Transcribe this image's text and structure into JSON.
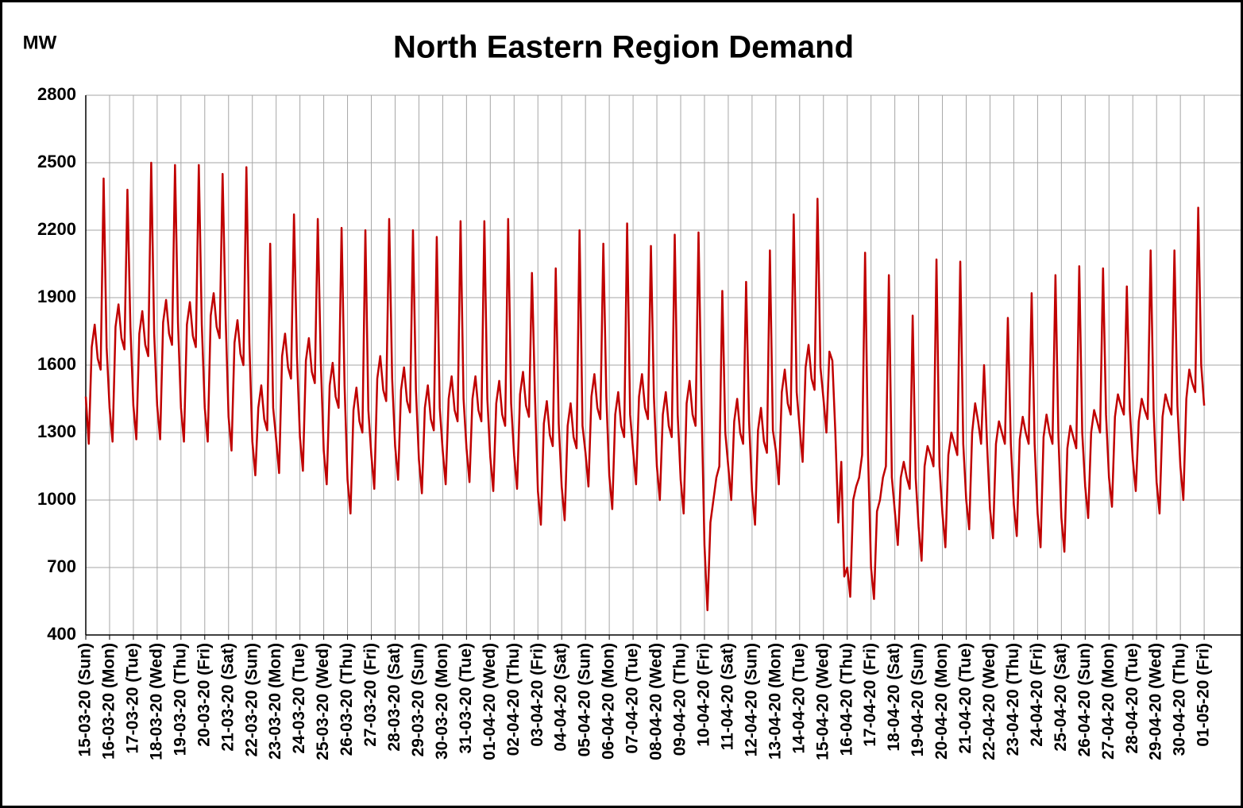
{
  "chart_data": {
    "type": "line",
    "title": "North Eastern Region Demand",
    "y_label": "MW",
    "color": "#c00000",
    "categories": [
      "15-03-20 (Sun)",
      "16-03-20 (Mon)",
      "17-03-20 (Tue)",
      "18-03-20 (Wed)",
      "19-03-20 (Thu)",
      "20-03-20 (Fri)",
      "21-03-20 (Sat)",
      "22-03-20 (Sun)",
      "23-03-20 (Mon)",
      "24-03-20 (Tue)",
      "25-03-20 (Wed)",
      "26-03-20 (Thu)",
      "27-03-20 (Fri)",
      "28-03-20 (Sat)",
      "29-03-20 (Sun)",
      "30-03-20 (Mon)",
      "31-03-20 (Tue)",
      "01-04-20 (Wed)",
      "02-04-20 (Thu)",
      "03-04-20 (Fri)",
      "04-04-20 (Sat)",
      "05-04-20 (Sun)",
      "06-04-20 (Mon)",
      "07-04-20 (Tue)",
      "08-04-20 (Wed)",
      "09-04-20 (Thu)",
      "10-04-20 (Fri)",
      "11-04-20 (Sat)",
      "12-04-20 (Sun)",
      "13-04-20 (Mon)",
      "14-04-20 (Tue)",
      "15-04-20 (Wed)",
      "16-04-20 (Thu)",
      "17-04-20 (Fri)",
      "18-04-20 (Sat)",
      "19-04-20 (Sun)",
      "20-04-20 (Mon)",
      "21-04-20 (Tue)",
      "22-04-20 (Wed)",
      "23-04-20 (Thu)",
      "24-04-20 (Fri)",
      "25-04-20 (Sat)",
      "26-04-20 (Sun)",
      "27-04-20 (Mon)",
      "28-04-20 (Tue)",
      "29-04-20 (Wed)",
      "30-04-20 (Thu)",
      "01-05-20 (Fri)"
    ],
    "values": [
      [
        1460,
        1250,
        1680,
        1780,
        1630,
        1580,
        2430,
        1680
      ],
      [
        1410,
        1260,
        1770,
        1870,
        1720,
        1670,
        2380,
        1770
      ],
      [
        1420,
        1270,
        1740,
        1840,
        1690,
        1640,
        2500,
        1740
      ],
      [
        1420,
        1270,
        1790,
        1890,
        1740,
        1690,
        2490,
        1790
      ],
      [
        1410,
        1260,
        1780,
        1880,
        1730,
        1680,
        2490,
        1780
      ],
      [
        1410,
        1260,
        1820,
        1920,
        1770,
        1720,
        2450,
        1820
      ],
      [
        1370,
        1220,
        1700,
        1800,
        1650,
        1600,
        2480,
        1700
      ],
      [
        1260,
        1110,
        1410,
        1510,
        1360,
        1310,
        2140,
        1410
      ],
      [
        1270,
        1120,
        1640,
        1740,
        1590,
        1540,
        2270,
        1640
      ],
      [
        1280,
        1130,
        1620,
        1720,
        1570,
        1520,
        2250,
        1620
      ],
      [
        1220,
        1070,
        1510,
        1610,
        1460,
        1410,
        2210,
        1510
      ],
      [
        1090,
        940,
        1400,
        1500,
        1350,
        1300,
        2200,
        1400
      ],
      [
        1200,
        1050,
        1540,
        1640,
        1490,
        1440,
        2250,
        1540
      ],
      [
        1240,
        1090,
        1490,
        1590,
        1440,
        1390,
        2200,
        1490
      ],
      [
        1180,
        1030,
        1410,
        1510,
        1360,
        1310,
        2170,
        1410
      ],
      [
        1220,
        1070,
        1450,
        1550,
        1400,
        1350,
        2240,
        1450
      ],
      [
        1230,
        1080,
        1450,
        1550,
        1400,
        1350,
        2240,
        1450
      ],
      [
        1190,
        1040,
        1430,
        1530,
        1380,
        1330,
        2250,
        1430
      ],
      [
        1200,
        1050,
        1470,
        1570,
        1420,
        1370,
        2010,
        1470
      ],
      [
        1040,
        890,
        1340,
        1440,
        1290,
        1240,
        2030,
        1340
      ],
      [
        1060,
        910,
        1330,
        1430,
        1280,
        1230,
        2200,
        1330
      ],
      [
        1210,
        1060,
        1460,
        1560,
        1410,
        1360,
        2140,
        1460
      ],
      [
        1110,
        960,
        1380,
        1480,
        1330,
        1280,
        2230,
        1380
      ],
      [
        1220,
        1070,
        1460,
        1560,
        1410,
        1360,
        2130,
        1460
      ],
      [
        1150,
        1000,
        1380,
        1480,
        1330,
        1280,
        2180,
        1380
      ],
      [
        1090,
        940,
        1430,
        1530,
        1380,
        1330,
        2190,
        1430
      ],
      [
        800,
        510,
        900,
        1000,
        1100,
        1150,
        1930,
        1300
      ],
      [
        1150,
        1000,
        1350,
        1450,
        1300,
        1250,
        1970,
        1350
      ],
      [
        1040,
        890,
        1310,
        1410,
        1260,
        1210,
        2110,
        1310
      ],
      [
        1220,
        1070,
        1480,
        1580,
        1430,
        1380,
        2270,
        1480
      ],
      [
        1320,
        1170,
        1590,
        1690,
        1540,
        1490,
        2340,
        1590
      ],
      [
        1450,
        1300,
        1660,
        1620,
        1300,
        900,
        1170,
        660
      ],
      [
        700,
        570,
        1000,
        1060,
        1100,
        1200,
        2100,
        1200
      ],
      [
        700,
        560,
        950,
        1000,
        1100,
        1150,
        2000,
        1100
      ],
      [
        950,
        800,
        1100,
        1170,
        1100,
        1050,
        1820,
        1100
      ],
      [
        880,
        730,
        1150,
        1240,
        1200,
        1150,
        2070,
        1150
      ],
      [
        940,
        790,
        1200,
        1300,
        1250,
        1200,
        2060,
        1250
      ],
      [
        1000,
        870,
        1300,
        1430,
        1350,
        1250,
        1600,
        1250
      ],
      [
        960,
        830,
        1250,
        1350,
        1300,
        1250,
        1810,
        1250
      ],
      [
        980,
        840,
        1270,
        1370,
        1300,
        1250,
        1920,
        1250
      ],
      [
        940,
        790,
        1280,
        1380,
        1300,
        1250,
        2000,
        1280
      ],
      [
        920,
        770,
        1230,
        1330,
        1280,
        1230,
        2040,
        1300
      ],
      [
        1060,
        920,
        1300,
        1400,
        1350,
        1300,
        2030,
        1380
      ],
      [
        1100,
        970,
        1370,
        1470,
        1420,
        1380,
        1950,
        1400
      ],
      [
        1180,
        1040,
        1350,
        1450,
        1400,
        1360,
        2110,
        1400
      ],
      [
        1080,
        940,
        1370,
        1470,
        1420,
        1380,
        2110,
        1420
      ],
      [
        1150,
        1000,
        1450,
        1580,
        1520,
        1480,
        2300,
        1600
      ],
      [
        1420
      ]
    ],
    "ylim": [
      400,
      2800
    ],
    "yticks": [
      400,
      700,
      1000,
      1300,
      1600,
      1900,
      2200,
      2500,
      2800
    ],
    "grid": true
  }
}
